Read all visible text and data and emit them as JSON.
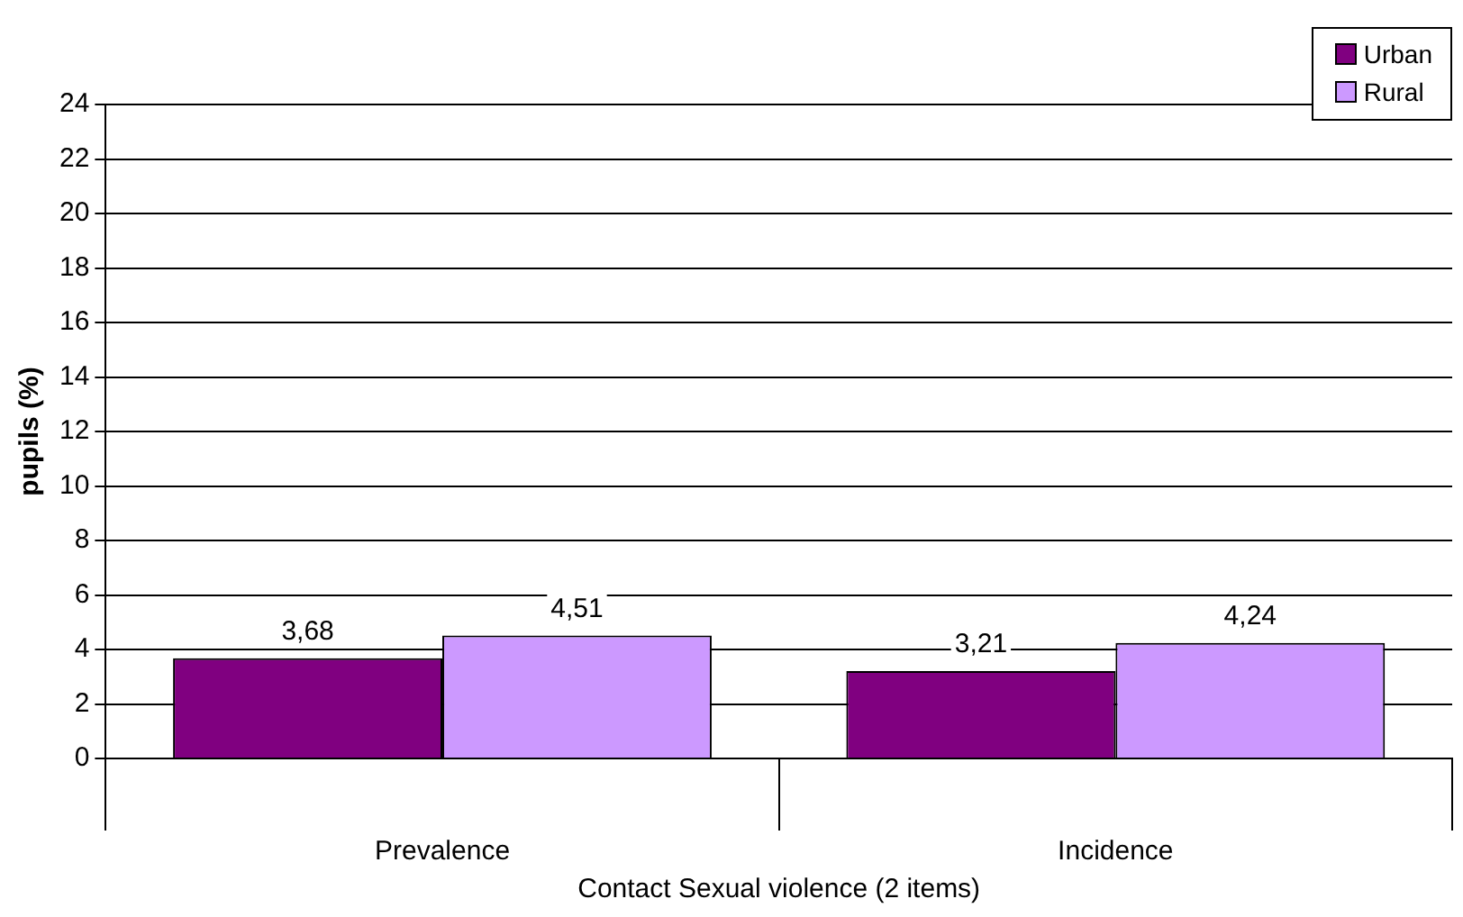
{
  "chart_data": {
    "type": "bar",
    "xlabel": "Contact Sexual violence (2 items)",
    "ylabel": "pupils (%)",
    "categories": [
      "Prevalence",
      "Incidence"
    ],
    "series": [
      {
        "name": "Urban",
        "color": "#800080",
        "values": [
          3.68,
          3.21
        ],
        "value_labels": [
          "3,68",
          "3,21"
        ]
      },
      {
        "name": "Rural",
        "color": "#cc99ff",
        "values": [
          4.51,
          4.24
        ],
        "value_labels": [
          "4,51",
          "4,24"
        ]
      }
    ],
    "ylim": [
      0,
      24
    ],
    "yticks": [
      0,
      2,
      4,
      6,
      8,
      10,
      12,
      14,
      16,
      18,
      20,
      22,
      24
    ],
    "grid": "y",
    "legend": "top right"
  }
}
